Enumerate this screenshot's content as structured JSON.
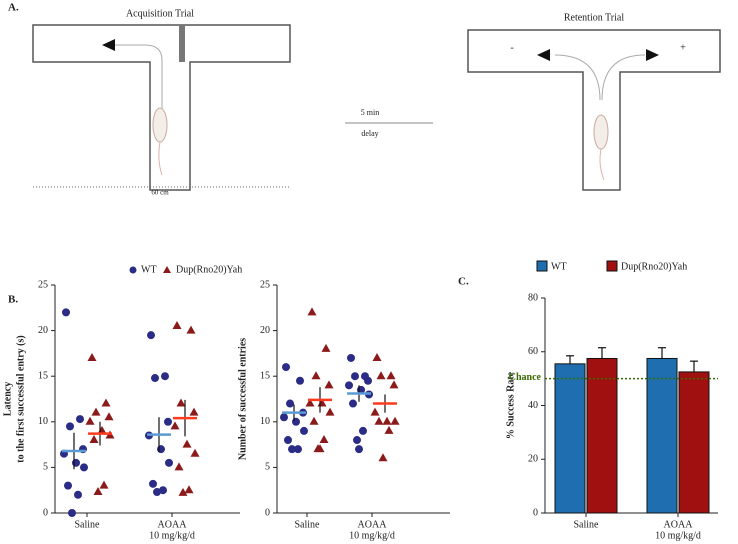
{
  "panel_a": {
    "label": "A.",
    "acquisition_title": "Acquisition Trial",
    "retention_title": "Retention Trial",
    "delay_top": "5 min",
    "delay_bottom": "delay",
    "scale": "60 cm",
    "minus": "-",
    "plus": "+"
  },
  "panel_b": {
    "label": "B.",
    "legend": [
      "WT",
      "Dup(Rno20)Yah"
    ]
  },
  "panel_c": {
    "label": "C."
  },
  "chart_data": [
    {
      "type": "strip",
      "ylabel": [
        "Latency",
        "to the first successful entry (s)"
      ],
      "categories": [
        [
          "Saline"
        ],
        [
          "AOAA",
          "10 mg/kg/d"
        ]
      ],
      "ylim": [
        0,
        25
      ],
      "yticks": [
        0,
        5,
        10,
        15,
        20,
        25
      ],
      "series": [
        {
          "name": "WT",
          "color": "#2b2c86",
          "marker": "circle",
          "mean_color": "#5b9bd5",
          "values": [
            [
              22,
              10.3,
              9.5,
              7,
              6.5,
              5.5,
              5,
              3,
              2,
              0
            ],
            [
              19.5,
              15,
              14.8,
              10,
              8.5,
              7,
              5.5,
              3.2,
              2.5,
              2.3
            ]
          ],
          "means": [
            6.8,
            8.6
          ],
          "errors": [
            2,
            1.9
          ]
        },
        {
          "name": "Dup(Rno20)Yah",
          "color": "#8b1a1a",
          "marker": "triangle",
          "mean_color": "#ff3b1f",
          "values": [
            [
              17,
              12,
              11,
              10.5,
              10,
              9,
              8.5,
              8,
              3,
              2.3
            ],
            [
              20.5,
              20,
              12,
              11,
              9.5,
              7.5,
              6.5,
              5,
              2.5,
              2.2
            ]
          ],
          "means": [
            8.7,
            10.4
          ],
          "errors": [
            1.3,
            2
          ]
        }
      ]
    },
    {
      "type": "strip",
      "ylabel": [
        "Number of successful entries"
      ],
      "categories": [
        [
          "Saline"
        ],
        [
          "AOAA",
          "10 mg/kg/d"
        ]
      ],
      "ylim": [
        0,
        25
      ],
      "yticks": [
        0,
        5,
        10,
        15,
        20,
        25
      ],
      "series": [
        {
          "name": "WT",
          "color": "#2b2c86",
          "marker": "circle",
          "mean_color": "#5b9bd5",
          "values": [
            [
              16,
              14.5,
              12,
              11,
              10.5,
              10,
              9,
              8,
              7,
              7
            ],
            [
              17,
              15,
              15,
              14.5,
              14,
              13.5,
              13,
              12,
              9,
              8,
              7
            ]
          ],
          "means": [
            11,
            13.1
          ],
          "errors": [
            0.9,
            0.9
          ]
        },
        {
          "name": "Dup(Rno20)Yah",
          "color": "#8b1a1a",
          "marker": "triangle",
          "mean_color": "#ff3b1f",
          "values": [
            [
              22,
              18,
              15,
              14,
              12,
              12,
              11,
              10,
              8,
              7,
              7
            ],
            [
              17,
              15,
              15,
              14,
              11,
              10,
              10,
              10,
              9,
              6
            ]
          ],
          "means": [
            12.4,
            12
          ],
          "errors": [
            1.4,
            1
          ]
        }
      ]
    },
    {
      "type": "bar",
      "ylabel": [
        "% Success Rate"
      ],
      "categories": [
        [
          "Saline"
        ],
        [
          "AOAA",
          "10 mg/kg/d"
        ]
      ],
      "ylim": [
        0,
        80
      ],
      "yticks": [
        0,
        20,
        40,
        60,
        80
      ],
      "reference": {
        "value": 50,
        "label": "Chance",
        "color": "#3a6b00"
      },
      "series": [
        {
          "name": "WT",
          "color": "#1f6fb0",
          "values": [
            55.5,
            57.5
          ],
          "errors": [
            3,
            4
          ]
        },
        {
          "name": "Dup(Rno20)Yah",
          "color": "#a01010",
          "values": [
            57.5,
            52.5
          ],
          "errors": [
            4,
            4
          ]
        }
      ]
    }
  ]
}
